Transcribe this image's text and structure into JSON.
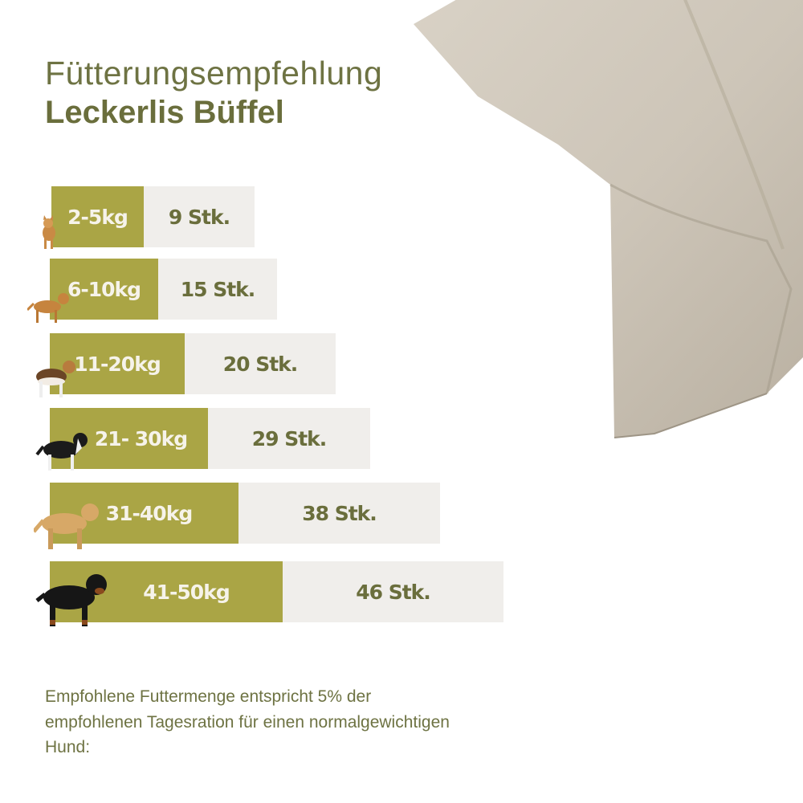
{
  "title": {
    "line1": "Fütterungsempfehlung",
    "line2": "Leckerlis Büffel"
  },
  "colors": {
    "weight_bar": "#aaa545",
    "amount_bar": "#f0eeeb",
    "text": "#6a6e3c"
  },
  "rows": [
    {
      "weight": "2-5kg",
      "amount": "9 Stk.",
      "dog_icon": "chihuahua-icon"
    },
    {
      "weight": "6-10kg",
      "amount": "15 Stk.",
      "dog_icon": "small-dog-icon"
    },
    {
      "weight": "11-20kg",
      "amount": "20 Stk.",
      "dog_icon": "beagle-icon"
    },
    {
      "weight": "21- 30kg",
      "amount": "29 Stk.",
      "dog_icon": "border-collie-icon"
    },
    {
      "weight": "31-40kg",
      "amount": "38 Stk.",
      "dog_icon": "labrador-icon"
    },
    {
      "weight": "41-50kg",
      "amount": "46 Stk.",
      "dog_icon": "rottweiler-icon"
    }
  ],
  "note": "Empfohlene Futtermenge entspricht 5% der empfohlenen Tagesration für einen normalgewichtigen Hund:",
  "chart_data": {
    "type": "bar",
    "orientation": "horizontal",
    "categories": [
      "2-5kg",
      "6-10kg",
      "11-20kg",
      "21- 30kg",
      "31-40kg",
      "41-50kg"
    ],
    "values": [
      9,
      15,
      20,
      29,
      38,
      46
    ],
    "unit": "Stk."
  }
}
